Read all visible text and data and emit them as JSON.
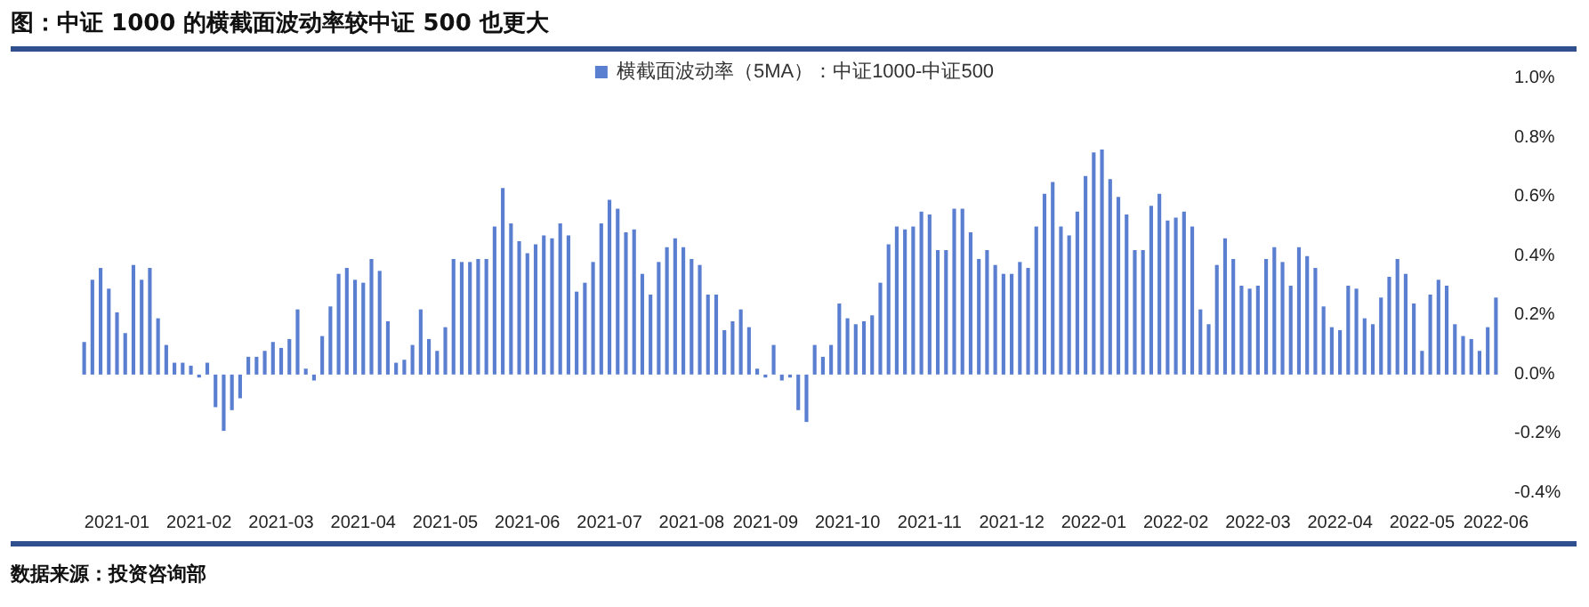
{
  "chart_data": {
    "type": "bar",
    "title": "图：中证 1000 的横截面波动率较中证 500 也更大",
    "annotations": [
      "数据来源：投资咨询部"
    ],
    "categories": [
      null,
      null,
      null,
      null,
      "2021-01",
      null,
      null,
      null,
      null,
      null,
      null,
      null,
      null,
      null,
      "2021-02",
      null,
      null,
      null,
      null,
      null,
      null,
      null,
      null,
      null,
      "2021-03",
      null,
      null,
      null,
      null,
      null,
      null,
      null,
      null,
      null,
      "2021-04",
      null,
      null,
      null,
      null,
      null,
      null,
      null,
      null,
      null,
      "2021-05",
      null,
      null,
      null,
      null,
      null,
      null,
      null,
      null,
      null,
      "2021-06",
      null,
      null,
      null,
      null,
      null,
      null,
      null,
      null,
      null,
      "2021-07",
      null,
      null,
      null,
      null,
      null,
      null,
      null,
      null,
      null,
      "2021-08",
      null,
      null,
      null,
      null,
      null,
      null,
      null,
      null,
      "2021-09",
      null,
      null,
      null,
      null,
      null,
      null,
      null,
      null,
      null,
      "2021-10",
      null,
      null,
      null,
      null,
      null,
      null,
      null,
      null,
      null,
      "2021-11",
      null,
      null,
      null,
      null,
      null,
      null,
      null,
      null,
      null,
      "2021-12",
      null,
      null,
      null,
      null,
      null,
      null,
      null,
      null,
      null,
      "2022-01",
      null,
      null,
      null,
      null,
      null,
      null,
      null,
      null,
      null,
      "2022-02",
      null,
      null,
      null,
      null,
      null,
      null,
      null,
      null,
      null,
      "2022-03",
      null,
      null,
      null,
      null,
      null,
      null,
      null,
      null,
      null,
      "2022-04",
      null,
      null,
      null,
      null,
      null,
      null,
      null,
      null,
      null,
      "2022-05",
      null,
      null,
      null,
      null,
      null,
      null,
      null,
      null,
      "2022-06"
    ],
    "series": [
      {
        "name": "横截面波动率（5MA）：中证1000-中证500",
        "color": "#5b7fd0",
        "values": [
          0.11,
          0.32,
          0.36,
          0.29,
          0.21,
          0.14,
          0.37,
          0.32,
          0.36,
          0.19,
          0.1,
          0.04,
          0.04,
          0.03,
          -0.01,
          0.04,
          -0.11,
          -0.19,
          -0.12,
          -0.08,
          0.06,
          0.06,
          0.08,
          0.11,
          0.09,
          0.12,
          0.22,
          0.02,
          -0.02,
          0.13,
          0.23,
          0.34,
          0.36,
          0.32,
          0.31,
          0.39,
          0.35,
          0.18,
          0.04,
          0.05,
          0.1,
          0.22,
          0.12,
          0.08,
          0.16,
          0.39,
          0.38,
          0.38,
          0.39,
          0.39,
          0.5,
          0.63,
          0.51,
          0.45,
          0.41,
          0.44,
          0.47,
          0.46,
          0.51,
          0.47,
          0.28,
          0.31,
          0.38,
          0.51,
          0.59,
          0.56,
          0.48,
          0.49,
          0.34,
          0.27,
          0.38,
          0.43,
          0.46,
          0.43,
          0.39,
          0.37,
          0.27,
          0.27,
          0.15,
          0.18,
          0.22,
          0.16,
          0.02,
          -0.01,
          0.1,
          -0.02,
          -0.01,
          -0.12,
          -0.16,
          0.1,
          0.06,
          0.1,
          0.24,
          0.19,
          0.17,
          0.18,
          0.2,
          0.31,
          0.44,
          0.5,
          0.49,
          0.5,
          0.55,
          0.54,
          0.42,
          0.42,
          0.56,
          0.56,
          0.48,
          0.39,
          0.42,
          0.37,
          0.34,
          0.34,
          0.38,
          0.36,
          0.5,
          0.61,
          0.65,
          0.5,
          0.47,
          0.55,
          0.67,
          0.75,
          0.76,
          0.66,
          0.6,
          0.54,
          0.42,
          0.42,
          0.57,
          0.61,
          0.52,
          0.53,
          0.55,
          0.5,
          0.22,
          0.17,
          0.37,
          0.46,
          0.39,
          0.3,
          0.29,
          0.3,
          0.39,
          0.43,
          0.38,
          0.3,
          0.43,
          0.4,
          0.36,
          0.23,
          0.16,
          0.15,
          0.3,
          0.29,
          0.19,
          0.17,
          0.26,
          0.33,
          0.39,
          0.34,
          0.24,
          0.08,
          0.27,
          0.32,
          0.3,
          0.17,
          0.13,
          0.12,
          0.08,
          0.16,
          0.26
        ]
      }
    ],
    "ylim": [
      -0.4,
      1.0
    ],
    "yticks": [
      {
        "value": -0.4,
        "label": "-0.4%"
      },
      {
        "value": -0.2,
        "label": "-0.2%"
      },
      {
        "value": 0,
        "label": "0.0%"
      },
      {
        "value": 0.2,
        "label": "0.2%"
      },
      {
        "value": 0.4,
        "label": "0.4%"
      },
      {
        "value": 0.6,
        "label": "0.6%"
      },
      {
        "value": 0.8,
        "label": "0.8%"
      },
      {
        "value": 1.0,
        "label": "1.0%"
      }
    ],
    "legend": "top"
  }
}
